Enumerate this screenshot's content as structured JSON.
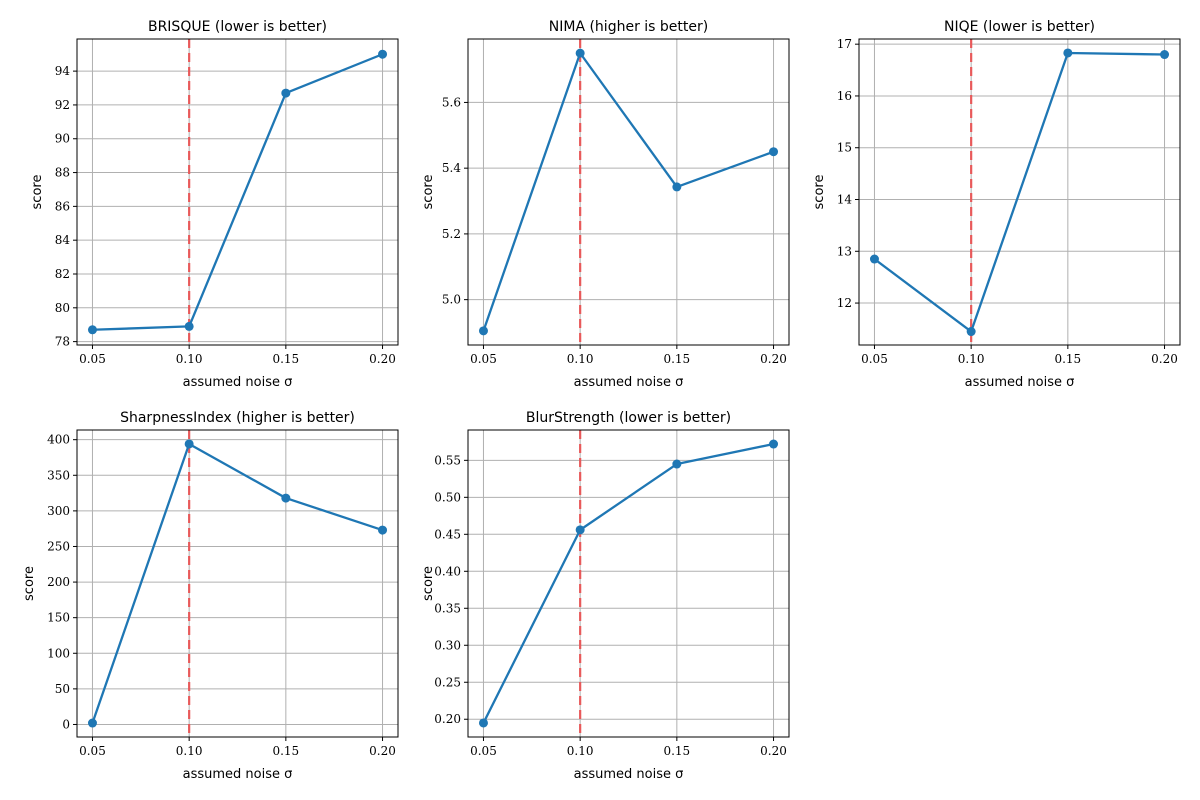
{
  "chart_data": [
    {
      "type": "line",
      "title": "BRISQUE (lower is better)",
      "xlabel": "assumed noise σ",
      "ylabel": "score",
      "x": [
        0.05,
        0.1,
        0.15,
        0.2
      ],
      "x_tick_labels": [
        "0.05",
        "0.10",
        "0.15",
        "0.20"
      ],
      "xlim": [
        0.042,
        0.208
      ],
      "series": [
        {
          "values": [
            78.7,
            78.9,
            92.7,
            95.0
          ]
        }
      ],
      "ylim": [
        77.8,
        95.9
      ],
      "yticks": [
        78,
        80,
        82,
        84,
        86,
        88,
        90,
        92,
        94
      ],
      "y_tick_labels": [
        "78",
        "80",
        "82",
        "84",
        "86",
        "88",
        "90",
        "92",
        "94"
      ],
      "vline_x": 0.1,
      "grid": true
    },
    {
      "type": "line",
      "title": "NIMA (higher is better)",
      "xlabel": "assumed noise σ",
      "ylabel": "score",
      "x": [
        0.05,
        0.1,
        0.15,
        0.2
      ],
      "x_tick_labels": [
        "0.05",
        "0.10",
        "0.15",
        "0.20"
      ],
      "xlim": [
        0.042,
        0.208
      ],
      "series": [
        {
          "values": [
            4.905,
            5.75,
            5.343,
            5.45
          ]
        }
      ],
      "ylim": [
        4.862,
        5.793
      ],
      "yticks": [
        5.0,
        5.2,
        5.4,
        5.6
      ],
      "y_tick_labels": [
        "5.0",
        "5.2",
        "5.4",
        "5.6"
      ],
      "vline_x": 0.1,
      "grid": true
    },
    {
      "type": "line",
      "title": "NIQE (lower is better)",
      "xlabel": "assumed noise σ",
      "ylabel": "score",
      "x": [
        0.05,
        0.1,
        0.15,
        0.2
      ],
      "x_tick_labels": [
        "0.05",
        "0.10",
        "0.15",
        "0.20"
      ],
      "xlim": [
        0.042,
        0.208
      ],
      "series": [
        {
          "values": [
            12.85,
            11.45,
            16.83,
            16.8
          ]
        }
      ],
      "ylim": [
        11.19,
        17.1
      ],
      "yticks": [
        12,
        13,
        14,
        15,
        16,
        17
      ],
      "y_tick_labels": [
        "12",
        "13",
        "14",
        "15",
        "16",
        "17"
      ],
      "vline_x": 0.1,
      "grid": true
    },
    {
      "type": "line",
      "title": "SharpnessIndex (higher is better)",
      "xlabel": "assumed noise σ",
      "ylabel": "score",
      "x": [
        0.05,
        0.1,
        0.15,
        0.2
      ],
      "x_tick_labels": [
        "0.05",
        "0.10",
        "0.15",
        "0.20"
      ],
      "xlim": [
        0.042,
        0.208
      ],
      "series": [
        {
          "values": [
            2,
            394,
            318,
            273
          ]
        }
      ],
      "ylim": [
        -17.6,
        413.6
      ],
      "yticks": [
        0,
        50,
        100,
        150,
        200,
        250,
        300,
        350,
        400
      ],
      "y_tick_labels": [
        "0",
        "50",
        "100",
        "150",
        "200",
        "250",
        "300",
        "350",
        "400"
      ],
      "vline_x": 0.1,
      "grid": true
    },
    {
      "type": "line",
      "title": "BlurStrength (lower is better)",
      "xlabel": "assumed noise σ",
      "ylabel": "score",
      "x": [
        0.05,
        0.1,
        0.15,
        0.2
      ],
      "x_tick_labels": [
        "0.05",
        "0.10",
        "0.15",
        "0.20"
      ],
      "xlim": [
        0.042,
        0.208
      ],
      "series": [
        {
          "values": [
            0.195,
            0.456,
            0.545,
            0.572
          ]
        }
      ],
      "ylim": [
        0.176,
        0.591
      ],
      "yticks": [
        0.2,
        0.25,
        0.3,
        0.35,
        0.4,
        0.45,
        0.5,
        0.55
      ],
      "y_tick_labels": [
        "0.20",
        "0.25",
        "0.30",
        "0.35",
        "0.40",
        "0.45",
        "0.50",
        "0.55"
      ],
      "vline_x": 0.1,
      "grid": true
    }
  ],
  "colors": {
    "line": "#1f77b4",
    "marker": "#1f77b4",
    "vline": "#e8595a",
    "grid": "#b0b0b0",
    "axes": "#000000"
  }
}
